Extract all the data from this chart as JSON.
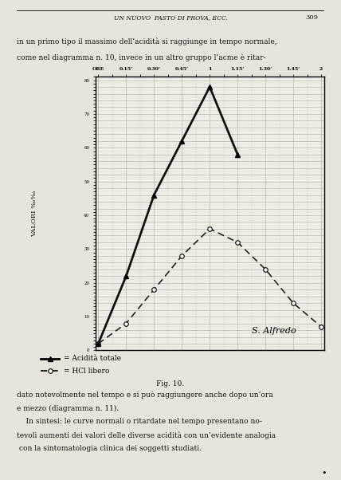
{
  "page_bg": "#e8e4db",
  "page_width": 4.28,
  "page_height": 6.02,
  "header_text": "UN NUOVO  PASTO DI PROVA, ECC.",
  "page_number": "309",
  "top_text_line1": "in un primo tipo il massimo dell’acidità si raggiunge in tempo normale,",
  "top_text_line2": "come nel diagramma n. 10, invece in un altro gruppo l’acme è ritar-",
  "bottom_text_lines": [
    "dato notevolmente nel tempo e si può raggiungere anche dopo un’ora",
    "e mezzo (diagramma n. 11).",
    "    In sintesi: le curve normali o ritardate nel tempo presentano no-",
    "tevoli aumenti dei valori delle diverse acidità con un’evidente analogia",
    " con la sintomatologia clinica dei soggetti studiati."
  ],
  "caption": "Fig. 10.",
  "legend_line1": "= Acidità totale",
  "legend_line2": "= HCl libero",
  "annotation": "S. Alfredo",
  "x_tick_positions": [
    0,
    1,
    2,
    3,
    4,
    5,
    6,
    7,
    8
  ],
  "x_tick_labels": [
    "ORE",
    "0.15’",
    "0.30’",
    "0.45’",
    "1",
    "1.15’",
    "1.30’",
    "1.45’",
    "2"
  ],
  "solid_x": [
    0,
    1,
    2,
    3,
    4,
    5
  ],
  "solid_y": [
    2,
    22,
    46,
    62,
    78,
    58
  ],
  "dashed_x": [
    0,
    1,
    2,
    3,
    4,
    5,
    6,
    7,
    8
  ],
  "dashed_y": [
    2,
    8,
    18,
    28,
    36,
    32,
    24,
    14,
    7
  ],
  "y_min": 0,
  "y_max": 80,
  "chart_bg": "#f0ede4",
  "grid_major_color": "#aaaaaa",
  "grid_minor_color": "#cccccc",
  "solid_color": "#111111",
  "dashed_color": "#222222",
  "text_color": "#111111"
}
